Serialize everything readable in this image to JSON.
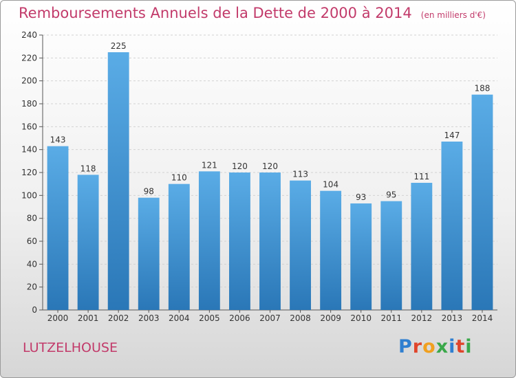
{
  "title": "Remboursements Annuels de la Dette de 2000 à 2014",
  "unit": "(en milliers d'€)",
  "commune": "LUTZELHOUSE",
  "logo": "Proxiti",
  "colors": {
    "title": "#c23a6a",
    "bar_top": "#5aace6",
    "bar_bottom": "#2a77b7"
  },
  "chart_data": {
    "type": "bar",
    "title": "Remboursements Annuels de la Dette de 2000 à 2014",
    "categories": [
      "2000",
      "2001",
      "2002",
      "2003",
      "2004",
      "2005",
      "2006",
      "2007",
      "2008",
      "2009",
      "2010",
      "2011",
      "2012",
      "2013",
      "2014"
    ],
    "values": [
      143,
      118,
      225,
      98,
      110,
      121,
      120,
      120,
      113,
      104,
      93,
      95,
      111,
      147,
      188
    ],
    "ylim": [
      0,
      240
    ],
    "yticks": [
      0,
      20,
      40,
      60,
      80,
      100,
      120,
      140,
      160,
      180,
      200,
      220,
      240
    ],
    "grid": true,
    "xlabel": "",
    "ylabel": ""
  }
}
